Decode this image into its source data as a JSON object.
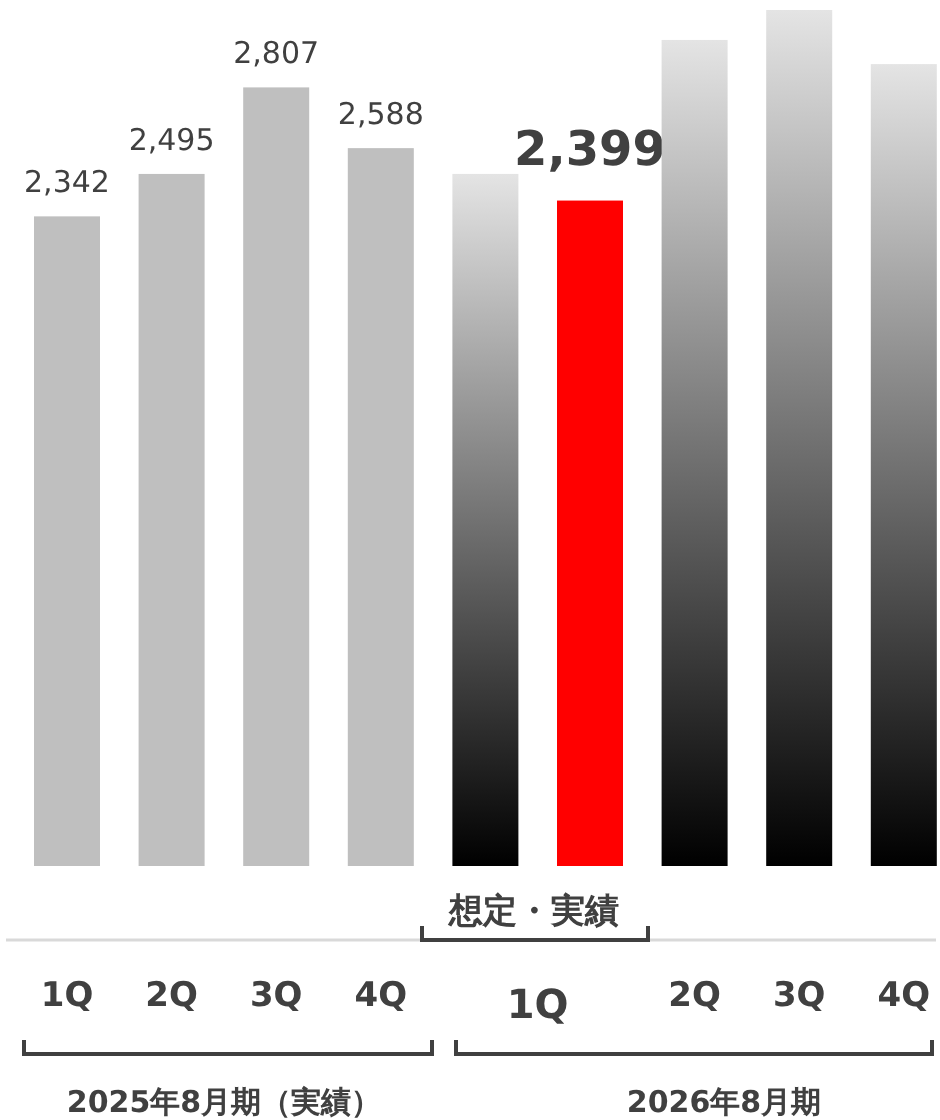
{
  "chart_data": {
    "type": "bar",
    "categories": [
      "1Q",
      "2Q",
      "3Q",
      "4Q",
      "1Q",
      null,
      "2Q",
      "3Q",
      "4Q"
    ],
    "values": [
      2342,
      2495,
      2807,
      2588,
      2495,
      2399,
      2978,
      3086,
      2891
    ],
    "colors": [
      "#bfbfbf",
      "#bfbfbf",
      "#bfbfbf",
      "#bfbfbf",
      "#000000",
      "#ff0000",
      "#000000",
      "#000000",
      "#000000"
    ],
    "value_labels": [
      "2,342",
      "2,495",
      "2,807",
      "2,588",
      null,
      "2,399",
      null,
      null,
      null
    ],
    "annotations": [
      "想定・実績",
      "2025年8月期（実績）",
      "2026年8月期"
    ]
  }
}
